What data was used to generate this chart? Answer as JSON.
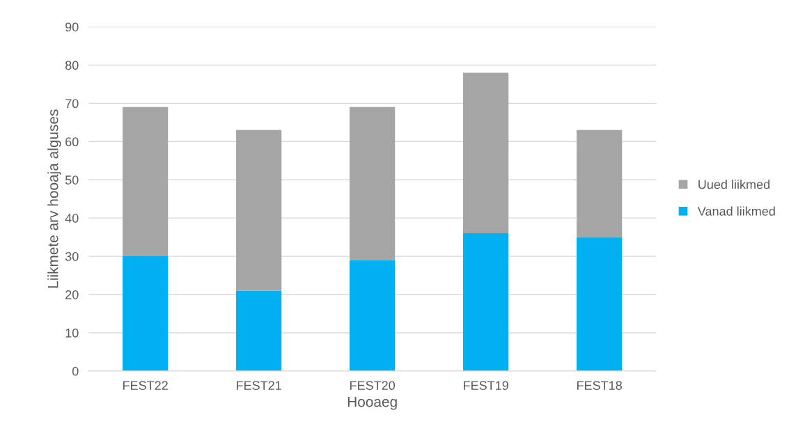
{
  "chart_data": {
    "type": "bar",
    "stacked": true,
    "xlabel": "Hooaeg",
    "ylabel": "Liikmete arv hooaja alguses",
    "categories": [
      "FEST22",
      "FEST21",
      "FEST20",
      "FEST19",
      "FEST18"
    ],
    "series": [
      {
        "name": "Vanad liikmed",
        "color": "#00b0f0",
        "values": [
          30,
          21,
          29,
          36,
          35
        ]
      },
      {
        "name": "Uued liikmed",
        "color": "#a5a5a5",
        "values": [
          39,
          42,
          40,
          42,
          28
        ]
      }
    ],
    "ylim": [
      0,
      90
    ],
    "yticks": [
      0,
      10,
      20,
      30,
      40,
      50,
      60,
      70,
      80,
      90
    ],
    "grid": "y",
    "legend": "right"
  }
}
